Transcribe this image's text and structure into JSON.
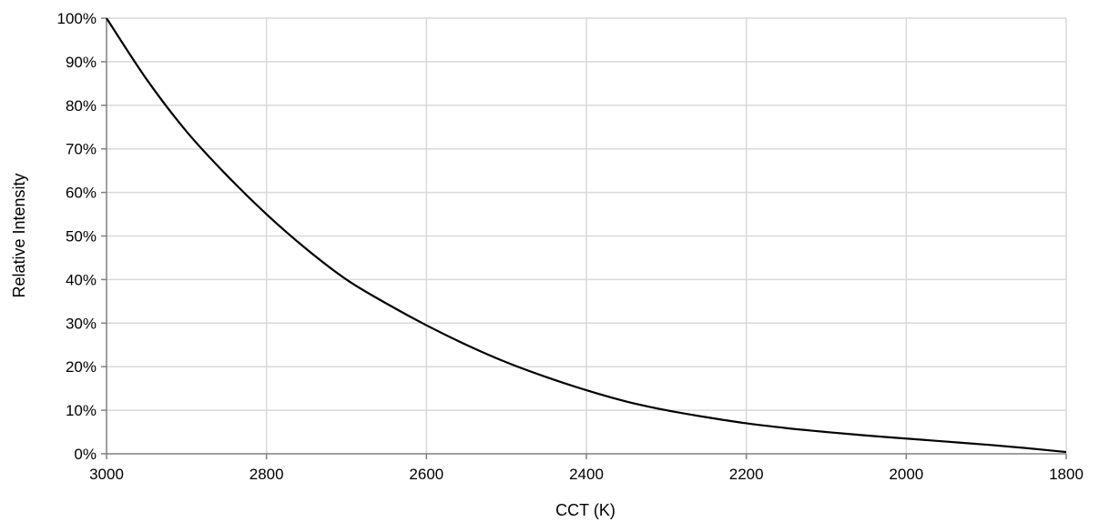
{
  "chart_data": {
    "type": "line",
    "title": "",
    "xlabel": "CCT (K)",
    "ylabel": "Relative Intensity",
    "x_reversed": true,
    "xlim": [
      3000,
      1800
    ],
    "ylim": [
      0,
      100
    ],
    "x_ticks": [
      3000,
      2800,
      2600,
      2400,
      2200,
      2000,
      1800
    ],
    "x_tick_labels": [
      "3000",
      "2800",
      "2600",
      "2400",
      "2200",
      "2000",
      "1800"
    ],
    "y_ticks": [
      0,
      10,
      20,
      30,
      40,
      50,
      60,
      70,
      80,
      90,
      100
    ],
    "y_tick_labels": [
      "0%",
      "10%",
      "20%",
      "30%",
      "40%",
      "50%",
      "60%",
      "70%",
      "80%",
      "90%",
      "100%"
    ],
    "grid": true,
    "legend": "none",
    "line_color": "#000000",
    "grid_color": "#d9d9d9",
    "series": [
      {
        "x": [
          3000,
          2950,
          2900,
          2850,
          2800,
          2750,
          2700,
          2650,
          2600,
          2550,
          2500,
          2450,
          2400,
          2350,
          2300,
          2250,
          2200,
          2150,
          2100,
          2050,
          2000,
          1950,
          1900,
          1850,
          1800
        ],
        "values": [
          100,
          86,
          74,
          64,
          55,
          47,
          40,
          34.5,
          29.5,
          25,
          21,
          17.6,
          14.6,
          12,
          10,
          8.4,
          7,
          5.9,
          5,
          4.2,
          3.5,
          2.8,
          2.1,
          1.3,
          0.4
        ]
      }
    ]
  }
}
